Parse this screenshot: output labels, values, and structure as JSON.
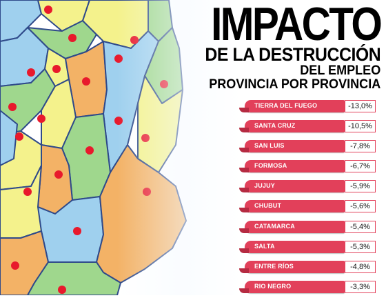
{
  "title": {
    "line1": "IMPACTO",
    "line2": "DE LA DESTRUCCIÓN",
    "line3": "DEL EMPLEO",
    "line4": "PROVINCIA POR PROVINCIA"
  },
  "colors": {
    "bar": "#e2405a",
    "bar_dark": "#b52a41",
    "capital_dot": "#e8192c",
    "map_yellow": "#f4f28c",
    "map_orange": "#f3b266",
    "map_green": "#9fd78d",
    "map_blue": "#9fd0ee"
  },
  "ranking": [
    {
      "province": "TIERRA DEL FUEGO",
      "value": "-13,0%"
    },
    {
      "province": "SANTA CRUZ",
      "value": "-10,5%"
    },
    {
      "province": "SAN LUIS",
      "value": "-7,8%"
    },
    {
      "province": "FORMOSA",
      "value": "-6,7%"
    },
    {
      "province": "JUJUY",
      "value": "-5,9%"
    },
    {
      "province": "CHUBUT",
      "value": "-5,6%"
    },
    {
      "province": "CATAMARCA",
      "value": "-5,4%"
    },
    {
      "province": "SALTA",
      "value": "-5,3%"
    },
    {
      "province": "ENTRE RÍOS",
      "value": "-4,8%"
    },
    {
      "province": "RIO NEGRO",
      "value": "-3,3%"
    }
  ]
}
